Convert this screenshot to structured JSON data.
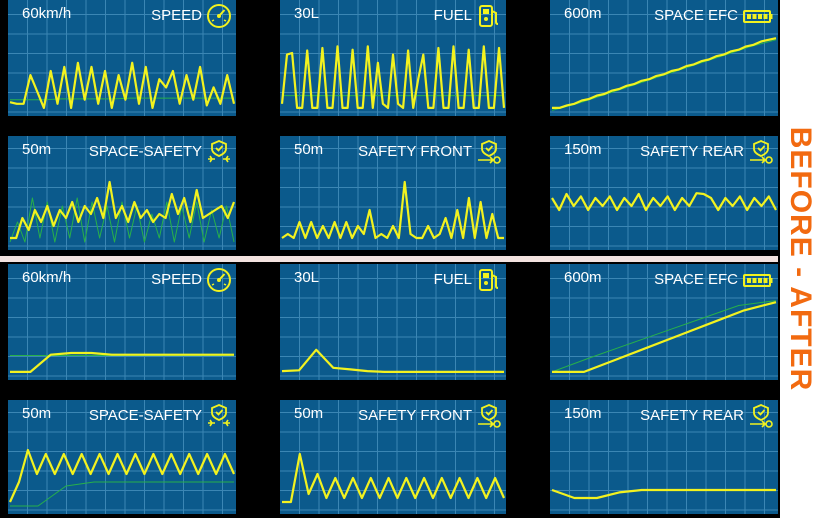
{
  "side_label": "BEFORE - AFTER",
  "colors": {
    "panel_bg": "#0b5a8c",
    "grid": "#3b86b4",
    "line_main": "#f2f21f",
    "line_ref": "#27b04a",
    "accent": "#f26a10",
    "divider": "#f3e3e0"
  },
  "before": {
    "speed": {
      "value": "60km/h",
      "title": "SPEED",
      "icon": "speedometer-icon"
    },
    "fuel": {
      "value": "30L",
      "title": "FUEL",
      "icon": "fuel-pump-icon"
    },
    "space_efc": {
      "value": "600m",
      "title": "SPACE EFC",
      "icon": "battery-icon"
    },
    "space_safety": {
      "value": "50m",
      "title": "SPACE-SAFETY",
      "icon": "safety-shield-icon"
    },
    "safety_front": {
      "value": "50m",
      "title": "SAFETY FRONT",
      "icon": "safety-shield-icon"
    },
    "safety_rear": {
      "value": "150m",
      "title": "SAFETY REAR",
      "icon": "safety-shield-icon"
    }
  },
  "after": {
    "speed": {
      "value": "60km/h",
      "title": "SPEED",
      "icon": "speedometer-icon"
    },
    "fuel": {
      "value": "30L",
      "title": "FUEL",
      "icon": "fuel-pump-icon"
    },
    "space_efc": {
      "value": "600m",
      "title": "SPACE EFC",
      "icon": "battery-icon"
    },
    "space_safety": {
      "value": "50m",
      "title": "SPACE-SAFETY",
      "icon": "safety-shield-icon"
    },
    "safety_front": {
      "value": "50m",
      "title": "SAFETY FRONT",
      "icon": "safety-shield-icon"
    },
    "safety_rear": {
      "value": "150m",
      "title": "SAFETY REAR",
      "icon": "safety-shield-icon"
    }
  },
  "chart_data": [
    {
      "type": "line",
      "title": "SPEED",
      "label": "60km/h",
      "section": "before",
      "ylim": [
        0,
        1
      ],
      "series": [
        {
          "values": [
            0.12,
            0.1,
            0.1,
            0.45,
            0.25,
            0.05,
            0.5,
            0.1,
            0.55,
            0.05,
            0.6,
            0.15,
            0.55,
            0.1,
            0.5,
            0.05,
            0.45,
            0.15,
            0.6,
            0.1,
            0.55,
            0.05,
            0.4,
            0.3,
            0.5,
            0.1,
            0.45,
            0.15,
            0.55,
            0.08,
            0.3,
            0.1,
            0.45,
            0.1
          ]
        },
        {
          "values": [
            0.15,
            0.15,
            0.15,
            0.16,
            0.16,
            0.16,
            0.16,
            0.17,
            0.17,
            0.17,
            0.17,
            0.17,
            0.17,
            0.17
          ]
        }
      ]
    },
    {
      "type": "line",
      "title": "FUEL",
      "label": "30L",
      "section": "before",
      "ylim": [
        0,
        1
      ],
      "series": [
        {
          "values": [
            0.1,
            0.7,
            0.72,
            0.05,
            0.05,
            0.75,
            0.05,
            0.05,
            0.78,
            0.05,
            0.05,
            0.8,
            0.05,
            0.05,
            0.76,
            0.05,
            0.05,
            0.8,
            0.05,
            0.6,
            0.1,
            0.05,
            0.7,
            0.1,
            0.05,
            0.75,
            0.05,
            0.4,
            0.7,
            0.05,
            0.05,
            0.78,
            0.05,
            0.05,
            0.8,
            0.05,
            0.05,
            0.76,
            0.05,
            0.05,
            0.8,
            0.05,
            0.05,
            0.78,
            0.05
          ]
        },
        {
          "values": [
            0.2,
            0.2,
            0.2,
            0.2,
            0.2,
            0.2,
            0.2,
            0.2,
            0.2,
            0.2
          ]
        }
      ]
    },
    {
      "type": "line",
      "title": "SPACE EFC",
      "label": "600m",
      "section": "before",
      "ylim": [
        0,
        1
      ],
      "series": [
        {
          "values": [
            0.05,
            0.05,
            0.08,
            0.1,
            0.14,
            0.16,
            0.2,
            0.22,
            0.26,
            0.28,
            0.32,
            0.34,
            0.38,
            0.4,
            0.44,
            0.46,
            0.5,
            0.52,
            0.56,
            0.58,
            0.62,
            0.64,
            0.68,
            0.7,
            0.74,
            0.76,
            0.8,
            0.82,
            0.86,
            0.88,
            0.9
          ]
        },
        {
          "values": [
            0.02,
            0.1,
            0.2,
            0.3,
            0.4,
            0.5,
            0.6,
            0.7,
            0.8,
            0.88
          ]
        }
      ]
    },
    {
      "type": "line",
      "title": "SPACE-SAFETY",
      "label": "50m",
      "section": "before",
      "ylim": [
        0,
        1
      ],
      "series": [
        {
          "values": [
            0.1,
            0.1,
            0.35,
            0.2,
            0.45,
            0.3,
            0.5,
            0.25,
            0.45,
            0.35,
            0.55,
            0.3,
            0.5,
            0.4,
            0.6,
            0.35,
            0.8,
            0.35,
            0.5,
            0.3,
            0.55,
            0.35,
            0.45,
            0.3,
            0.4,
            0.35,
            0.65,
            0.4,
            0.6,
            0.3,
            0.7,
            0.35,
            0.4,
            0.45,
            0.5,
            0.35,
            0.55
          ]
        },
        {
          "values": [
            0.05,
            0.3,
            0.05,
            0.6,
            0.1,
            0.55,
            0.05,
            0.5,
            0.1,
            0.6,
            0.05,
            0.55,
            0.1,
            0.5,
            0.05,
            0.55,
            0.1,
            0.5,
            0.05,
            0.4,
            0.1,
            0.55,
            0.05,
            0.5,
            0.1,
            0.55,
            0.05,
            0.45,
            0.1,
            0.5,
            0.05
          ]
        }
      ]
    },
    {
      "type": "line",
      "title": "SAFETY FRONT",
      "label": "50m",
      "section": "before",
      "ylim": [
        0,
        1
      ],
      "series": [
        {
          "values": [
            0.1,
            0.15,
            0.1,
            0.3,
            0.1,
            0.3,
            0.1,
            0.25,
            0.1,
            0.3,
            0.1,
            0.3,
            0.1,
            0.25,
            0.15,
            0.45,
            0.1,
            0.15,
            0.1,
            0.25,
            0.1,
            0.8,
            0.15,
            0.1,
            0.1,
            0.25,
            0.1,
            0.15,
            0.35,
            0.1,
            0.45,
            0.1,
            0.6,
            0.1,
            0.55,
            0.1,
            0.4,
            0.1,
            0.1
          ]
        }
      ]
    },
    {
      "type": "line",
      "title": "SAFETY REAR",
      "label": "150m",
      "section": "before",
      "ylim": [
        0,
        1
      ],
      "series": [
        {
          "values": [
            0.6,
            0.45,
            0.65,
            0.5,
            0.62,
            0.45,
            0.6,
            0.5,
            0.62,
            0.45,
            0.6,
            0.5,
            0.65,
            0.45,
            0.6,
            0.5,
            0.62,
            0.45,
            0.6,
            0.5,
            0.66,
            0.65,
            0.6,
            0.45,
            0.6,
            0.5,
            0.62,
            0.45,
            0.6,
            0.5,
            0.62,
            0.45
          ]
        }
      ]
    },
    {
      "type": "line",
      "title": "SPEED",
      "label": "60km/h",
      "section": "after",
      "ylim": [
        0,
        1
      ],
      "series": [
        {
          "values": [
            0.05,
            0.05,
            0.26,
            0.28,
            0.28,
            0.26,
            0.26,
            0.26,
            0.26,
            0.26,
            0.26,
            0.26
          ]
        },
        {
          "values": [
            0.25,
            0.25,
            0.25,
            0.25,
            0.25,
            0.25,
            0.25
          ]
        }
      ]
    },
    {
      "type": "line",
      "title": "FUEL",
      "label": "30L",
      "section": "after",
      "ylim": [
        0,
        1
      ],
      "series": [
        {
          "values": [
            0.06,
            0.07,
            0.32,
            0.1,
            0.08,
            0.06,
            0.05,
            0.05,
            0.05,
            0.05,
            0.05,
            0.05,
            0.05,
            0.05
          ]
        }
      ]
    },
    {
      "type": "line",
      "title": "SPACE EFC",
      "label": "600m",
      "section": "after",
      "ylim": [
        0,
        1
      ],
      "series": [
        {
          "values": [
            0.05,
            0.05,
            0.2,
            0.35,
            0.5,
            0.65,
            0.8,
            0.9
          ]
        },
        {
          "values": [
            0.05,
            0.22,
            0.38,
            0.54,
            0.7,
            0.86,
            0.92
          ]
        }
      ]
    },
    {
      "type": "line",
      "title": "SPACE-SAFETY",
      "label": "50m",
      "section": "after",
      "ylim": [
        0,
        1
      ],
      "series": [
        {
          "values": [
            0.1,
            0.35,
            0.75,
            0.45,
            0.7,
            0.45,
            0.7,
            0.45,
            0.7,
            0.45,
            0.7,
            0.45,
            0.7,
            0.45,
            0.7,
            0.45,
            0.7,
            0.45,
            0.7,
            0.45,
            0.7,
            0.45,
            0.7,
            0.45,
            0.7,
            0.45
          ]
        },
        {
          "values": [
            0.05,
            0.05,
            0.3,
            0.35,
            0.35,
            0.35,
            0.35,
            0.35,
            0.35
          ]
        }
      ]
    },
    {
      "type": "line",
      "title": "SAFETY FRONT",
      "label": "50m",
      "section": "after",
      "ylim": [
        0,
        1
      ],
      "series": [
        {
          "values": [
            0.1,
            0.1,
            0.7,
            0.2,
            0.45,
            0.15,
            0.4,
            0.15,
            0.4,
            0.15,
            0.4,
            0.15,
            0.4,
            0.15,
            0.4,
            0.15,
            0.4,
            0.15,
            0.4,
            0.15,
            0.4,
            0.15,
            0.4,
            0.15,
            0.4,
            0.15
          ]
        }
      ]
    },
    {
      "type": "line",
      "title": "SAFETY REAR",
      "label": "150m",
      "section": "after",
      "ylim": [
        0,
        1
      ],
      "series": [
        {
          "values": [
            0.25,
            0.15,
            0.15,
            0.22,
            0.25,
            0.25,
            0.25,
            0.25,
            0.25,
            0.25,
            0.25
          ]
        }
      ]
    }
  ]
}
